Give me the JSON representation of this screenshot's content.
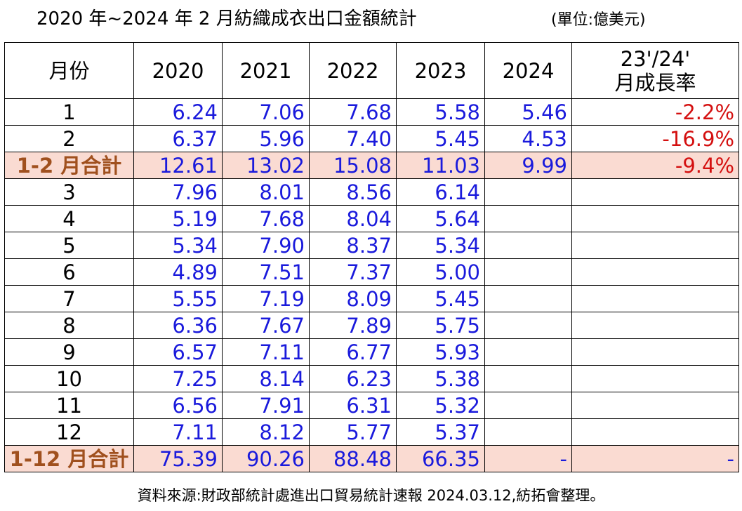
{
  "header": {
    "title": "2020 年~2024 年 2 月紡織成衣出口金額統計",
    "unit": "(單位:億美元)"
  },
  "table": {
    "columns": [
      "月份",
      "2020",
      "2021",
      "2022",
      "2023",
      "2024",
      "23'/24'\n月成長率"
    ],
    "rows": [
      [
        "1",
        "6.24",
        "7.06",
        "7.68",
        "5.58",
        "5.46",
        "-2.2%"
      ],
      [
        "2",
        "6.37",
        "5.96",
        "7.40",
        "5.45",
        "4.53",
        "-16.9%"
      ],
      [
        "1-2 月合計",
        "12.61",
        "13.02",
        "15.08",
        "11.03",
        "9.99",
        "-9.4%"
      ],
      [
        "3",
        "7.96",
        "8.01",
        "8.56",
        "6.14"
      ],
      [
        "4",
        "5.19",
        "7.68",
        "8.04",
        "5.64"
      ],
      [
        "5",
        "5.34",
        "7.90",
        "8.37",
        "5.34"
      ],
      [
        "6",
        "4.89",
        "7.51",
        "7.37",
        "5.00"
      ],
      [
        "7",
        "5.55",
        "7.19",
        "8.09",
        "5.45"
      ],
      [
        "8",
        "6.36",
        "7.67",
        "7.89",
        "5.75"
      ],
      [
        "9",
        "6.57",
        "7.11",
        "6.77",
        "5.93"
      ],
      [
        "10",
        "7.25",
        "8.14",
        "6.23",
        "5.38"
      ],
      [
        "11",
        "6.56",
        "7.91",
        "6.31",
        "5.32"
      ],
      [
        "12",
        "7.11",
        "8.12",
        "5.77",
        "5.37"
      ],
      [
        "1-12 月合計",
        "75.39",
        "90.26",
        "88.48",
        "66.35",
        "-",
        "-"
      ]
    ]
  },
  "footer": {
    "source": "資料來源:財政部統計處進出口貿易統計速報 2024.03.12,紡拓會整理。"
  }
}
